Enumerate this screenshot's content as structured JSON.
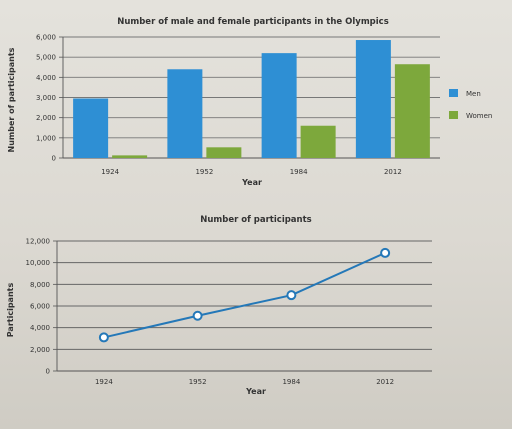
{
  "chart_data": [
    {
      "type": "bar",
      "title": "Number of male and female participants in the Olympics",
      "xlabel": "Year",
      "ylabel": "Number of participants",
      "categories": [
        "1924",
        "1952",
        "1984",
        "2012"
      ],
      "series": [
        {
          "name": "Men",
          "values": [
            2950,
            4400,
            5200,
            5850
          ],
          "color": "#2e8fd4"
        },
        {
          "name": "Women",
          "values": [
            130,
            530,
            1600,
            4650
          ],
          "color": "#7da83c"
        }
      ],
      "ylim": [
        0,
        6000
      ],
      "yticks": [
        "0",
        "1,000",
        "2,000",
        "3,000",
        "4,000",
        "5,000",
        "6,000"
      ],
      "grid": true,
      "legend_position": "right"
    },
    {
      "type": "line",
      "title": "Number of participants",
      "xlabel": "Year",
      "ylabel": "Participants",
      "categories": [
        "1924",
        "1952",
        "1984",
        "2012"
      ],
      "series": [
        {
          "values": [
            3100,
            5100,
            7000,
            10900
          ],
          "color": "#2478b8"
        }
      ],
      "ylim": [
        0,
        12000
      ],
      "yticks": [
        "0",
        "2,000",
        "4,000",
        "6,000",
        "8,000",
        "10,000",
        "12,000"
      ],
      "grid": true
    }
  ]
}
